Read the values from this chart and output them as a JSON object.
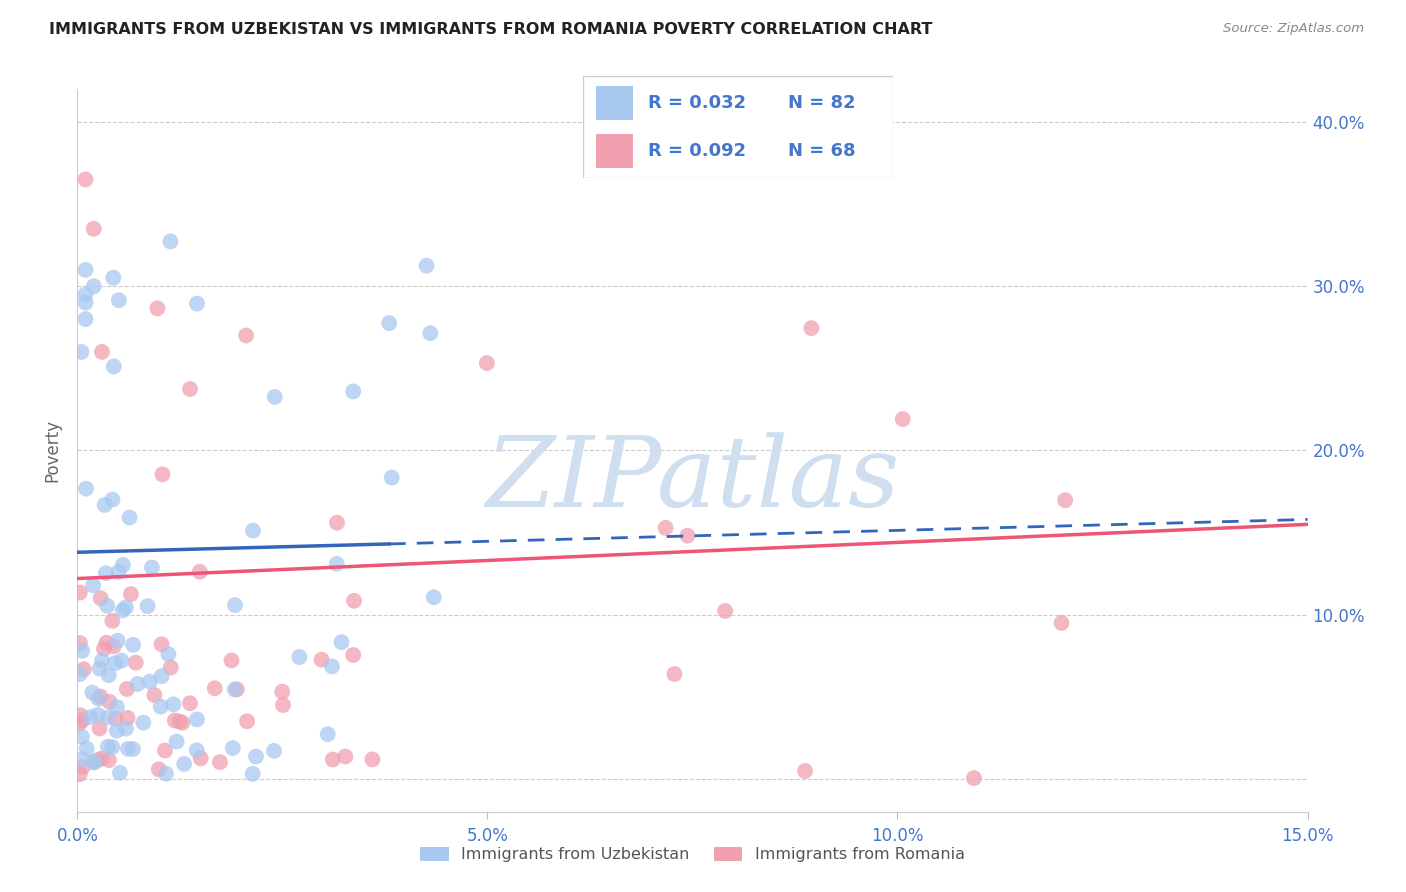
{
  "title": "IMMIGRANTS FROM UZBEKISTAN VS IMMIGRANTS FROM ROMANIA POVERTY CORRELATION CHART",
  "source": "Source: ZipAtlas.com",
  "ylabel": "Poverty",
  "x_min": 0.0,
  "x_max": 0.15,
  "y_min": -0.02,
  "y_max": 0.42,
  "y_ticks": [
    0.0,
    0.1,
    0.2,
    0.3,
    0.4
  ],
  "y_tick_labels": [
    "",
    "10.0%",
    "20.0%",
    "30.0%",
    "40.0%"
  ],
  "x_ticks": [
    0.0,
    0.05,
    0.1,
    0.15
  ],
  "x_tick_labels": [
    "0.0%",
    "5.0%",
    "10.0%",
    "15.0%"
  ],
  "color_uzbekistan": "#A8C8F0",
  "color_romania": "#F0A0B0",
  "color_uzbekistan_line": "#3366BB",
  "color_romania_line": "#EE5577",
  "color_text": "#4477CC",
  "watermark_color": "#D0DFF0",
  "background_color": "#FFFFFF",
  "uz_line_x0": 0.0,
  "uz_line_x_solid_end": 0.038,
  "uz_line_x1": 0.15,
  "uz_line_y0": 0.138,
  "uz_line_y1": 0.158,
  "ro_line_x0": 0.0,
  "ro_line_x1": 0.15,
  "ro_line_y0": 0.122,
  "ro_line_y1": 0.155
}
